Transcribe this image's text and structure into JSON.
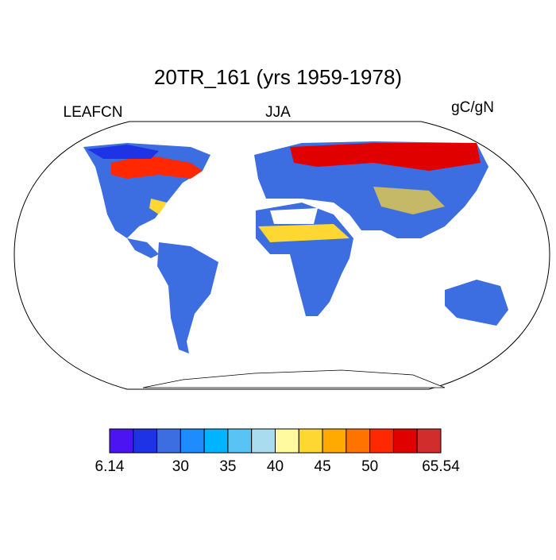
{
  "header": {
    "title": "20TR_161 (yrs 1959-1978)",
    "left": "LEAFCN",
    "center": "JJA",
    "right": "gC/gN"
  },
  "colorbar": {
    "colors": [
      "#4b14f0",
      "#1e32e6",
      "#3c6ee1",
      "#1e8cff",
      "#00b4ff",
      "#5ac3f5",
      "#aadcf0",
      "#fffaa0",
      "#ffd732",
      "#ffaa00",
      "#ff7300",
      "#ff2800",
      "#e10000",
      "#d22d2d"
    ],
    "boundaries": [
      6.14,
      null,
      null,
      30,
      null,
      35,
      null,
      40,
      null,
      45,
      null,
      50,
      null,
      null,
      65.54
    ]
  }
}
